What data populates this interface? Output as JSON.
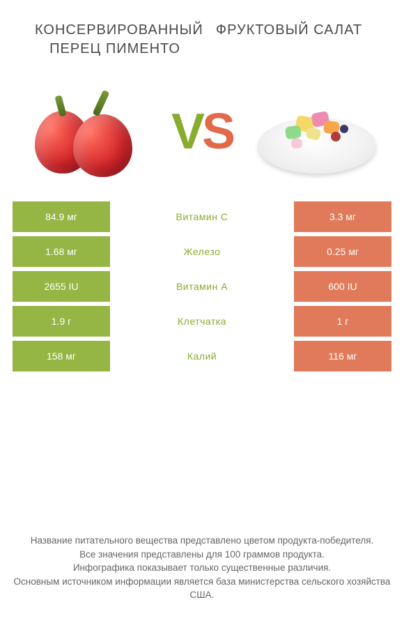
{
  "titles": {
    "left": "КОНСЕРВИРОВАННЫЙ ПЕРЕЦ ПИМЕНТО",
    "right": "ФРУКТОВЫЙ САЛАТ"
  },
  "vs": {
    "v": "V",
    "s": "S"
  },
  "colors": {
    "green": "#95b544",
    "orange": "#e17a5a",
    "label_green": "#88ac2e",
    "label_orange": "#e06a4a",
    "text": "#4a4a4a",
    "white": "#ffffff"
  },
  "rows": [
    {
      "left": "84.9 мг",
      "label": "Витамин C",
      "right": "3.3 мг",
      "winner": "left"
    },
    {
      "left": "1.68 мг",
      "label": "Железо",
      "right": "0.25 мг",
      "winner": "left"
    },
    {
      "left": "2655 IU",
      "label": "Витамин A",
      "right": "600 IU",
      "winner": "left"
    },
    {
      "left": "1.9 г",
      "label": "Клетчатка",
      "right": "1 г",
      "winner": "left"
    },
    {
      "left": "158 мг",
      "label": "Калий",
      "right": "116 мг",
      "winner": "left"
    }
  ],
  "footnotes": [
    "Название питательного вещества представлено цветом продукта-победителя.",
    "Все значения представлены для 100 граммов продукта.",
    "Инфографика показывает только существенные различия.",
    "Основным источником информации является база министерства сельского хозяйства США."
  ]
}
